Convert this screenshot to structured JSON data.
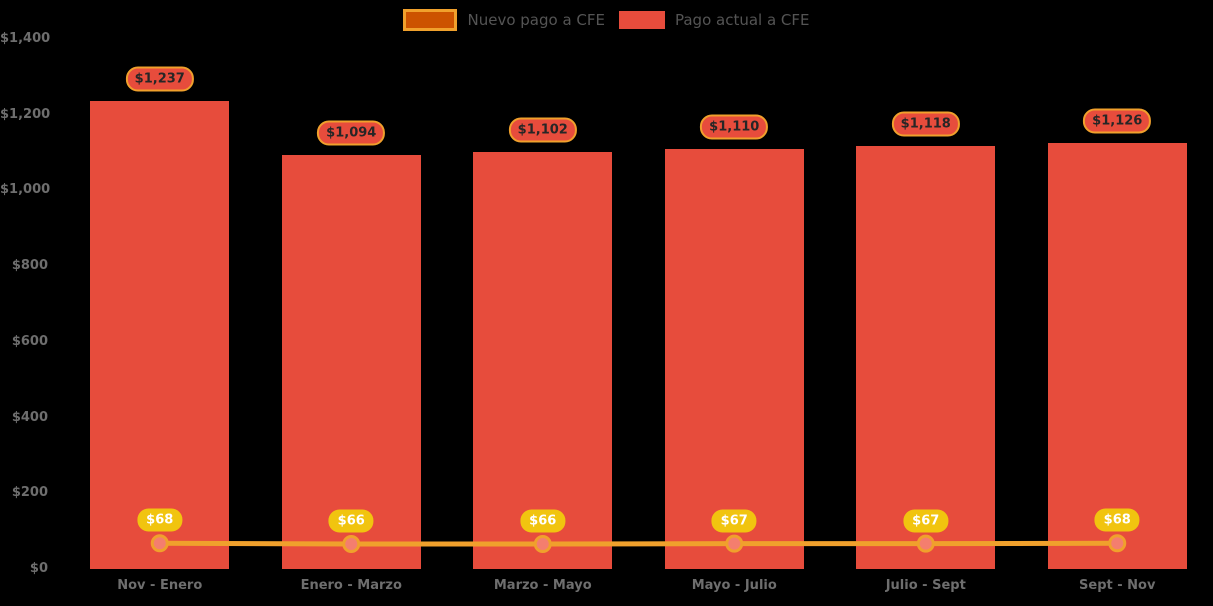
{
  "colors": {
    "background": "#000000",
    "bar": "#e74c3c",
    "line": "#f0a02c",
    "dot_fill": "#f47e6e",
    "dot_ring": "#f0a02c",
    "bar_label_fill": "#e74c3c",
    "bar_label_border": "#f0a02c",
    "bar_label_text": "#262626",
    "line_label_fill": "#f1c40f",
    "line_label_text": "#ffffff",
    "axis_text": "#6e6e6e",
    "legend_text": "#545454",
    "legend_nuevo_fill": "#cc5200",
    "legend_nuevo_border": "#f0a02c",
    "legend_actual_fill": "#e74c3c"
  },
  "chart_data": {
    "type": "bar",
    "title": "",
    "xlabel": "",
    "ylabel": "",
    "ylim": [
      0,
      1400
    ],
    "grid": false,
    "legend_position": "top-center",
    "categories": [
      "Nov - Enero",
      "Enero - Marzo",
      "Marzo - Mayo",
      "Mayo - Julio",
      "Julio - Sept",
      "Sept - Nov"
    ],
    "series": [
      {
        "name": "Pago actual a CFE",
        "type": "bar",
        "values": [
          1237,
          1094,
          1102,
          1110,
          1118,
          1126
        ],
        "labels": [
          "$1,237",
          "$1,094",
          "$1,102",
          "$1,110",
          "$1,118",
          "$1,126"
        ]
      },
      {
        "name": "Nuevo pago a CFE",
        "type": "line",
        "values": [
          68,
          66,
          66,
          67,
          67,
          68
        ],
        "labels": [
          "$68",
          "$66",
          "$66",
          "$67",
          "$67",
          "$68"
        ]
      }
    ],
    "y_ticks": [
      {
        "label": "$1,400",
        "value": 1400
      },
      {
        "label": "$1,200",
        "value": 1200
      },
      {
        "label": "$1,000",
        "value": 1000
      },
      {
        "label": "$800",
        "value": 800
      },
      {
        "label": "$600",
        "value": 600
      },
      {
        "label": "$400",
        "value": 400
      },
      {
        "label": "$200",
        "value": 200
      },
      {
        "label": "$0",
        "value": 0
      }
    ],
    "legend": [
      {
        "label": "Nuevo pago a CFE"
      },
      {
        "label": "Pago actual a CFE"
      }
    ]
  }
}
